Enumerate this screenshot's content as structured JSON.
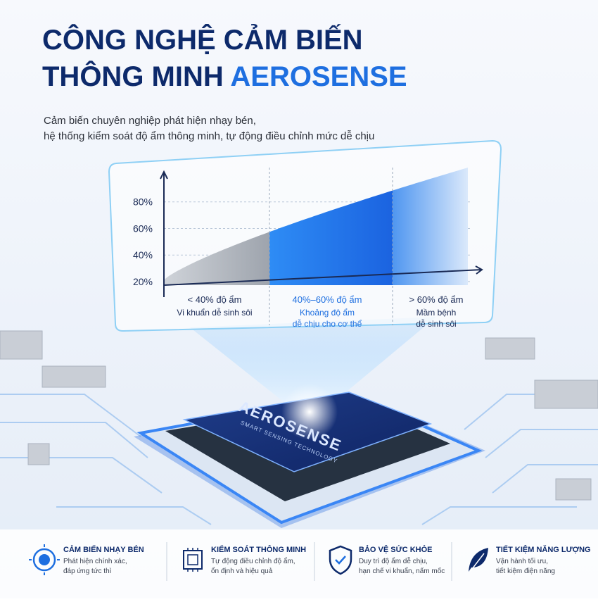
{
  "header": {
    "title_line1": "CÔNG NGHỆ CẢM BIẾN",
    "title_line2_prefix": "THÔNG MINH",
    "title_line2_highlight": "AEROSENSE",
    "subtitle_lines": [
      "Cảm biến chuyên nghiệp phát hiện nhạy bén,",
      "hệ thống kiểm soát độ ẩm thông minh, tự động điều chỉnh mức dễ chịu"
    ]
  },
  "chart": {
    "type": "area",
    "ylim": [
      10,
      100
    ],
    "yticks": [
      {
        "value": 20,
        "label": "20%"
      },
      {
        "value": 40,
        "label": "40%"
      },
      {
        "value": 60,
        "label": "60%"
      },
      {
        "value": 80,
        "label": "80%"
      }
    ],
    "zones": [
      {
        "label": "< 40% độ ẩm",
        "description_lines": [
          "Vi khuẩn dễ sinh sôi"
        ]
      },
      {
        "label": "40%–60% độ ẩm",
        "description_lines": [
          "Khoảng độ ẩm",
          "dễ chịu cho cơ thể"
        ]
      },
      {
        "label": "> 60% độ ẩm",
        "description_lines": [
          "Mầm bệnh",
          "dễ sinh sôi"
        ]
      }
    ]
  },
  "chip": {
    "brand": "AEROSENSE",
    "tagline": "SMART SENSING TECHNOLOGY"
  },
  "features": [
    {
      "title": "CẢM BIẾN NHẠY BÉN",
      "lines": [
        "Phát hiện chính xác,",
        "đáp ứng tức thì"
      ]
    },
    {
      "title": "KIỂM SOÁT THÔNG MINH",
      "lines": [
        "Tự động điều chỉnh độ ẩm,",
        "ổn định và hiệu quả"
      ]
    },
    {
      "title": "BẢO VỆ SỨC KHỎE",
      "lines": [
        "Duy trì độ ẩm dễ chịu,",
        "hạn chế vi khuẩn, nấm mốc"
      ]
    },
    {
      "title": "TIẾT KIỆM NĂNG LƯỢNG",
      "lines": [
        "Vận hành tối ưu,",
        "tiết kiệm điện năng"
      ]
    }
  ]
}
